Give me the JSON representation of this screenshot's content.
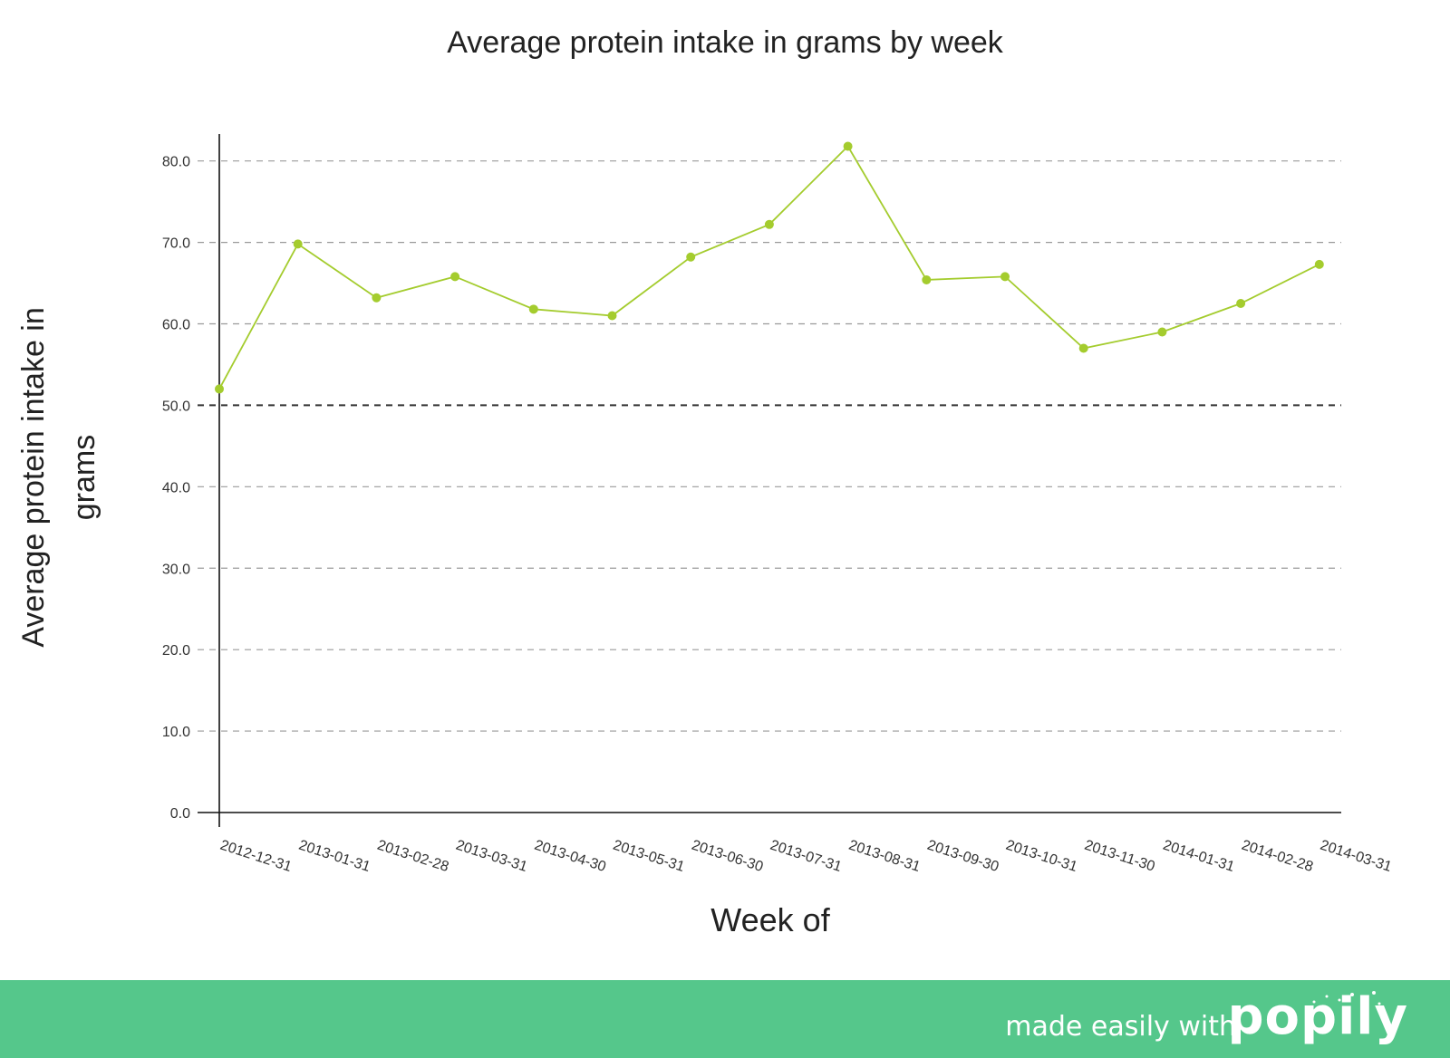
{
  "chart_data": {
    "type": "line",
    "title": "Average protein intake in grams by week",
    "xlabel": "Week of",
    "ylabel": "Average protein intake in grams",
    "x": [
      "2012-12-31",
      "2013-01-31",
      "2013-02-28",
      "2013-03-31",
      "2013-04-30",
      "2013-05-31",
      "2013-06-30",
      "2013-07-31",
      "2013-08-31",
      "2013-09-30",
      "2013-10-31",
      "2013-11-30",
      "2014-01-31",
      "2014-02-28",
      "2014-03-31"
    ],
    "series": [
      {
        "values": [
          52.0,
          69.8,
          63.2,
          65.8,
          61.8,
          61.0,
          68.2,
          72.2,
          81.8,
          65.4,
          65.8,
          57.0,
          59.0,
          62.5,
          67.3
        ]
      }
    ],
    "yticks": [
      "0.0",
      "10.0",
      "20.0",
      "30.0",
      "40.0",
      "50.0",
      "60.0",
      "70.0",
      "80.0"
    ],
    "ylim": [
      0,
      83.3
    ],
    "reference_line": 50.0,
    "grid": "horizontal dashed",
    "line_color": "#a4cc2e"
  },
  "footer": {
    "text": "made easily with",
    "logo": "popily",
    "background": "#55c78b"
  }
}
